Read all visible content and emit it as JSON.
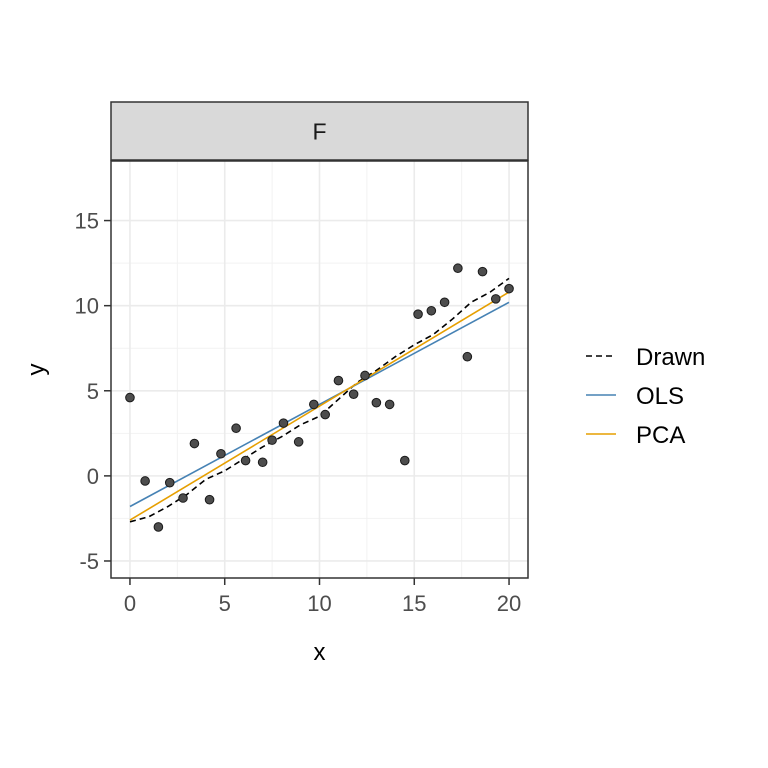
{
  "chart_data": {
    "type": "scatter",
    "facet_label": "F",
    "xlabel": "x",
    "ylabel": "y",
    "xlim": [
      -1,
      21
    ],
    "ylim": [
      -6,
      18.5
    ],
    "x_ticks": [
      0,
      5,
      10,
      15,
      20
    ],
    "y_ticks": [
      -5,
      0,
      5,
      10,
      15
    ],
    "grid": true,
    "legend_position": "right",
    "points": [
      {
        "x": 0.0,
        "y": 4.6
      },
      {
        "x": 0.8,
        "y": -0.3
      },
      {
        "x": 1.5,
        "y": -3.0
      },
      {
        "x": 2.1,
        "y": -0.4
      },
      {
        "x": 2.8,
        "y": -1.3
      },
      {
        "x": 3.4,
        "y": 1.9
      },
      {
        "x": 4.2,
        "y": -1.4
      },
      {
        "x": 4.8,
        "y": 1.3
      },
      {
        "x": 5.6,
        "y": 2.8
      },
      {
        "x": 6.1,
        "y": 0.9
      },
      {
        "x": 7.0,
        "y": 0.8
      },
      {
        "x": 7.5,
        "y": 2.1
      },
      {
        "x": 8.1,
        "y": 3.1
      },
      {
        "x": 8.9,
        "y": 2.0
      },
      {
        "x": 9.7,
        "y": 4.2
      },
      {
        "x": 10.3,
        "y": 3.6
      },
      {
        "x": 11.0,
        "y": 5.6
      },
      {
        "x": 11.8,
        "y": 4.8
      },
      {
        "x": 12.4,
        "y": 5.9
      },
      {
        "x": 13.0,
        "y": 4.3
      },
      {
        "x": 13.7,
        "y": 4.2
      },
      {
        "x": 14.5,
        "y": 0.9
      },
      {
        "x": 15.2,
        "y": 9.5
      },
      {
        "x": 15.9,
        "y": 9.7
      },
      {
        "x": 16.6,
        "y": 10.2
      },
      {
        "x": 17.3,
        "y": 12.2
      },
      {
        "x": 17.8,
        "y": 7.0
      },
      {
        "x": 18.6,
        "y": 12.0
      },
      {
        "x": 19.3,
        "y": 10.4
      },
      {
        "x": 20.0,
        "y": 11.0
      }
    ],
    "series": [
      {
        "name": "Drawn",
        "color": "#000000",
        "dash": "dashed",
        "x": [
          0,
          1,
          2,
          3,
          4,
          5,
          6,
          7,
          8,
          9,
          10,
          11,
          12,
          13,
          14,
          15,
          16,
          17,
          18,
          19,
          20
        ],
        "y": [
          -2.7,
          -2.4,
          -1.8,
          -1.1,
          -0.2,
          0.3,
          1.0,
          1.7,
          2.3,
          3.0,
          3.5,
          4.5,
          5.5,
          6.2,
          7.0,
          7.7,
          8.3,
          9.2,
          10.2,
          10.8,
          11.6
        ]
      },
      {
        "name": "OLS",
        "color": "#4682b4",
        "dash": "solid",
        "x": [
          0,
          20
        ],
        "y": [
          -1.8,
          10.2
        ]
      },
      {
        "name": "PCA",
        "color": "#e69f00",
        "dash": "solid",
        "x": [
          0,
          20
        ],
        "y": [
          -2.6,
          10.8
        ]
      }
    ]
  }
}
